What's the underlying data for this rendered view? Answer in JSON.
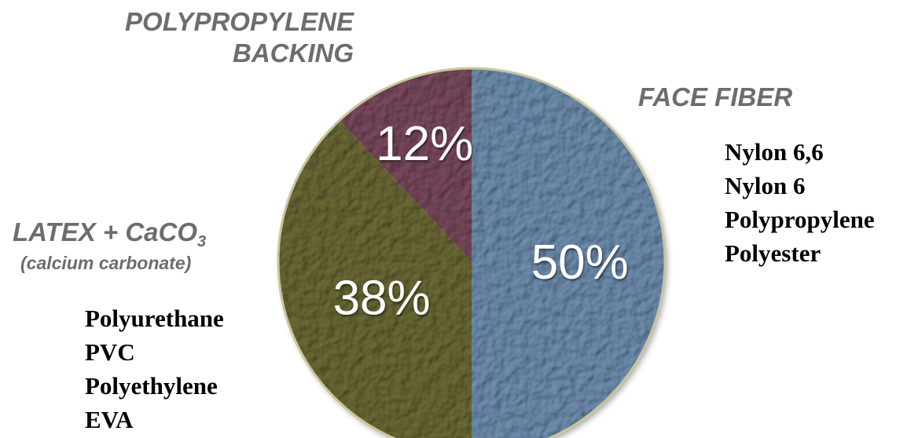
{
  "chart_data": {
    "type": "pie",
    "slices": [
      {
        "key": "face",
        "label_lines": [
          "FACE FIBER"
        ],
        "value": 50,
        "display": "50%",
        "color": "#6f8fb0",
        "materials": [
          "Nylon 6,6",
          "Nylon 6",
          "Polypropylene",
          "Polyester"
        ]
      },
      {
        "key": "latex",
        "label_lines": [
          "LATEX + CaCO"
        ],
        "label_subscript": "3",
        "sublabel": "(calcium carbonate)",
        "value": 38,
        "display": "38%",
        "color": "#6b6a36",
        "materials": [
          "Polyurethane",
          "PVC",
          "Polyethylene",
          "EVA"
        ]
      },
      {
        "key": "backing",
        "label_lines": [
          "POLYPROPYLENE",
          "BACKING"
        ],
        "value": 12,
        "display": "12%",
        "color": "#7a4a5e",
        "materials": []
      }
    ]
  }
}
